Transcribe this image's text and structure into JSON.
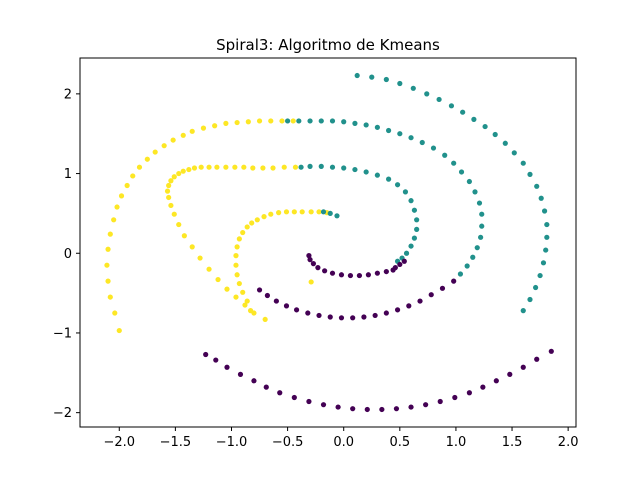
{
  "chart_data": {
    "type": "scatter",
    "title": "Spiral3: Algoritmo de Kmeans",
    "xlabel": "",
    "ylabel": "",
    "xlim": [
      -2.35,
      2.07
    ],
    "ylim": [
      -2.18,
      2.45
    ],
    "xticks": [
      -2.0,
      -1.5,
      -1.0,
      -0.5,
      0.0,
      0.5,
      1.0,
      1.5,
      2.0
    ],
    "xtick_labels": [
      "−2.0",
      "−1.5",
      "−1.0",
      "−0.5",
      "0.0",
      "0.5",
      "1.0",
      "1.5",
      "2.0"
    ],
    "yticks": [
      -2,
      -1,
      0,
      1,
      2
    ],
    "ytick_labels": [
      "−2",
      "−1",
      "0",
      "1",
      "2"
    ],
    "grid": false,
    "legend": "none",
    "colors": {
      "yellow": "#fde725",
      "teal": "#21918c",
      "purple": "#440154"
    },
    "series": [
      {
        "color": "#fde725",
        "x": [
          -2.0,
          -2.04,
          -2.08,
          -2.1,
          -2.11,
          -2.1,
          -2.08,
          -2.05,
          -2.02,
          -1.98,
          -1.93,
          -1.88,
          -1.82,
          -1.75,
          -1.68,
          -1.6,
          -1.52,
          -1.43,
          -1.35,
          -1.25,
          -1.15,
          -1.05,
          -0.95,
          -0.85,
          -0.75,
          -0.65,
          -0.55,
          -0.45,
          -0.7,
          -0.8,
          -0.88,
          -0.96,
          -1.04,
          -1.12,
          -1.2,
          -1.28,
          -1.35,
          -1.42,
          -1.47,
          -1.51,
          -1.54,
          -1.56,
          -1.57,
          -1.56,
          -1.54,
          -1.51,
          -1.47,
          -1.43,
          -1.38,
          -1.33,
          -1.27,
          -1.2,
          -1.13,
          -1.05,
          -0.97,
          -0.89,
          -0.81,
          -0.72,
          -0.63,
          -0.53,
          -0.43,
          -0.83,
          -0.86,
          -0.9,
          -0.93,
          -0.95,
          -0.96,
          -0.96,
          -0.95,
          -0.93,
          -0.9,
          -0.86,
          -0.82,
          -0.77,
          -0.71,
          -0.65,
          -0.58,
          -0.51,
          -0.44,
          -0.37,
          -0.29,
          -0.22,
          -0.15,
          -0.29
        ],
        "y": [
          -0.97,
          -0.75,
          -0.55,
          -0.35,
          -0.15,
          0.05,
          0.24,
          0.42,
          0.58,
          0.72,
          0.85,
          0.97,
          1.08,
          1.18,
          1.27,
          1.35,
          1.42,
          1.48,
          1.53,
          1.57,
          1.6,
          1.63,
          1.64,
          1.65,
          1.66,
          1.66,
          1.66,
          1.66,
          -0.83,
          -0.75,
          -0.65,
          -0.55,
          -0.45,
          -0.33,
          -0.2,
          -0.06,
          0.08,
          0.22,
          0.36,
          0.49,
          0.6,
          0.7,
          0.78,
          0.85,
          0.91,
          0.96,
          1.0,
          1.03,
          1.05,
          1.07,
          1.08,
          1.08,
          1.08,
          1.08,
          1.08,
          1.08,
          1.07,
          1.07,
          1.07,
          1.08,
          1.08,
          -0.72,
          -0.6,
          -0.49,
          -0.38,
          -0.27,
          -0.15,
          -0.03,
          0.08,
          0.18,
          0.26,
          0.33,
          0.38,
          0.42,
          0.46,
          0.49,
          0.51,
          0.52,
          0.52,
          0.52,
          0.52,
          0.52,
          0.51,
          -0.36
        ]
      },
      {
        "color": "#21918c",
        "x": [
          0.12,
          0.25,
          0.38,
          0.5,
          0.62,
          0.74,
          0.85,
          0.96,
          1.06,
          1.16,
          1.26,
          1.35,
          1.44,
          1.52,
          1.6,
          1.66,
          1.72,
          1.76,
          1.79,
          1.81,
          1.81,
          1.8,
          1.78,
          1.75,
          1.71,
          1.66,
          1.6,
          -0.5,
          -0.4,
          -0.3,
          -0.2,
          -0.1,
          0.0,
          0.1,
          0.2,
          0.3,
          0.4,
          0.5,
          0.6,
          0.7,
          0.8,
          0.9,
          0.98,
          1.05,
          1.12,
          1.17,
          1.21,
          1.23,
          1.23,
          1.22,
          1.19,
          1.15,
          1.1,
          1.04,
          -0.38,
          -0.3,
          -0.2,
          -0.1,
          0.0,
          0.1,
          0.2,
          0.3,
          0.4,
          0.48,
          0.55,
          0.6,
          0.63,
          0.65,
          0.65,
          0.63,
          0.6,
          0.56,
          0.52,
          0.48,
          -0.18,
          -0.12,
          -0.06
        ],
        "y": [
          2.23,
          2.21,
          2.18,
          2.13,
          2.07,
          2.0,
          1.93,
          1.85,
          1.77,
          1.68,
          1.59,
          1.49,
          1.38,
          1.26,
          1.13,
          0.99,
          0.84,
          0.69,
          0.53,
          0.36,
          0.2,
          0.04,
          -0.12,
          -0.28,
          -0.43,
          -0.58,
          -0.72,
          1.66,
          1.66,
          1.66,
          1.66,
          1.66,
          1.65,
          1.63,
          1.61,
          1.58,
          1.54,
          1.5,
          1.45,
          1.39,
          1.32,
          1.23,
          1.13,
          1.02,
          0.9,
          0.77,
          0.63,
          0.49,
          0.34,
          0.2,
          0.07,
          -0.05,
          -0.16,
          -0.26,
          1.08,
          1.09,
          1.09,
          1.08,
          1.07,
          1.05,
          1.02,
          0.98,
          0.93,
          0.86,
          0.77,
          0.66,
          0.54,
          0.42,
          0.3,
          0.19,
          0.09,
          0.0,
          -0.06,
          -0.1,
          0.52,
          0.5,
          0.47
        ]
      },
      {
        "color": "#440154",
        "x": [
          1.85,
          1.72,
          1.6,
          1.48,
          1.36,
          1.24,
          1.12,
          0.99,
          0.86,
          0.73,
          0.6,
          0.47,
          0.34,
          0.21,
          0.08,
          -0.05,
          -0.18,
          -0.31,
          -0.44,
          -0.57,
          -0.69,
          -0.8,
          -0.92,
          -1.04,
          -1.14,
          -1.23,
          0.98,
          0.88,
          0.78,
          0.68,
          0.58,
          0.48,
          0.38,
          0.28,
          0.18,
          0.08,
          -0.02,
          -0.12,
          -0.22,
          -0.32,
          -0.42,
          -0.51,
          -0.6,
          -0.68,
          -0.75,
          0.44,
          0.38,
          0.3,
          0.22,
          0.14,
          0.06,
          -0.02,
          -0.1,
          -0.17,
          -0.23,
          -0.27,
          -0.3,
          -0.31,
          0.46,
          0.5,
          0.54
        ],
        "y": [
          -1.23,
          -1.33,
          -1.43,
          -1.52,
          -1.6,
          -1.68,
          -1.75,
          -1.81,
          -1.86,
          -1.9,
          -1.93,
          -1.95,
          -1.96,
          -1.96,
          -1.95,
          -1.93,
          -1.9,
          -1.86,
          -1.81,
          -1.75,
          -1.68,
          -1.6,
          -1.52,
          -1.43,
          -1.34,
          -1.27,
          -0.35,
          -0.44,
          -0.52,
          -0.6,
          -0.66,
          -0.71,
          -0.75,
          -0.78,
          -0.8,
          -0.81,
          -0.81,
          -0.8,
          -0.78,
          -0.75,
          -0.71,
          -0.66,
          -0.6,
          -0.53,
          -0.46,
          -0.21,
          -0.23,
          -0.25,
          -0.27,
          -0.28,
          -0.28,
          -0.27,
          -0.25,
          -0.22,
          -0.18,
          -0.13,
          -0.08,
          -0.03,
          -0.18,
          -0.14,
          -0.1
        ]
      }
    ]
  }
}
